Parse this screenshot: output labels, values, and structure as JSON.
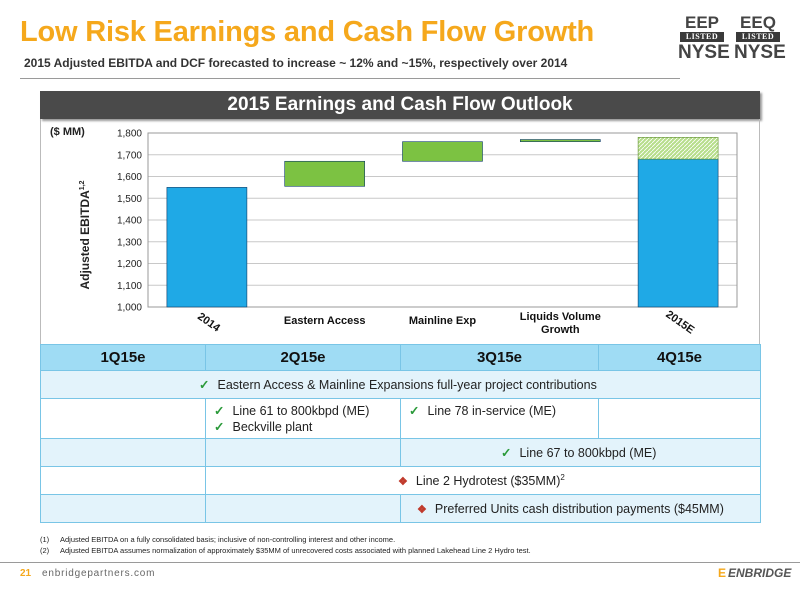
{
  "header": {
    "title": "Low Risk Earnings and Cash Flow Growth",
    "subtitle": "2015 Adjusted EBITDA and DCF forecasted to increase ~ 12% and ~15%, respectively over 2014"
  },
  "logos": [
    {
      "ticker": "EEP",
      "band": "LISTED",
      "exchange": "NYSE"
    },
    {
      "ticker": "EEQ",
      "band": "LISTED",
      "exchange": "NYSE"
    }
  ],
  "panel": {
    "title": "2015 Earnings and Cash Flow Outlook"
  },
  "chart_data": {
    "type": "bar",
    "subtype": "waterfall",
    "unit_label": "($ MM)",
    "ylabel": "Adjusted EBITDA",
    "ylabel_superscript": "1,2",
    "ylim": [
      1000,
      1800
    ],
    "yticks": [
      "1,000",
      "1,100",
      "1,200",
      "1,300",
      "1,400",
      "1,500",
      "1,600",
      "1,700",
      "1,800"
    ],
    "grid": true,
    "categories": [
      "2014",
      "Eastern Access",
      "Mainline Exp",
      "Liquids Volume Growth",
      "2015E"
    ],
    "bars": [
      {
        "category": "2014",
        "base": 1000,
        "top": 1550,
        "kind": "total"
      },
      {
        "category": "Eastern Access",
        "base": 1555,
        "top": 1670,
        "kind": "increase"
      },
      {
        "category": "Mainline Exp",
        "base": 1670,
        "top": 1760,
        "kind": "increase"
      },
      {
        "category": "Liquids Volume Growth",
        "base": 1760,
        "top": 1770,
        "kind": "increase"
      },
      {
        "category": "2015E",
        "base": 1000,
        "top": 1680,
        "kind": "total",
        "range_top": 1780
      }
    ],
    "colors": {
      "total": "#1FA9E6",
      "increase": "#7CC242",
      "range": "#B7DE8C"
    }
  },
  "timeline": {
    "quarters": [
      "1Q15e",
      "2Q15e",
      "3Q15e",
      "4Q15e"
    ],
    "rows": {
      "r1": "Eastern Access & Mainline Expansions full-year project contributions",
      "r2_a1": "Line 61 to 800kbpd (ME)",
      "r2_a2": "Beckville plant",
      "r2_b": "Line 78 in-service (ME)",
      "r3": "Line 67 to 800kbpd (ME)",
      "r4": "Line 2 Hydrotest ($35MM)",
      "r4_sup": "2",
      "r5": "Preferred Units cash distribution payments ($45MM)"
    }
  },
  "footnotes": [
    {
      "num": "(1)",
      "text": "Adjusted EBITDA on a fully consolidated basis;  inclusive of non-controlling interest and other income."
    },
    {
      "num": "(2)",
      "text": "Adjusted EBITDA assumes normalization of approximately $35MM of unrecovered costs associated with planned Lakehead Line 2 Hydro test."
    }
  ],
  "footer": {
    "page": "21",
    "site": "enbridgepartners.com",
    "brand": "ENBRIDGE",
    "brand_mark": "E"
  }
}
